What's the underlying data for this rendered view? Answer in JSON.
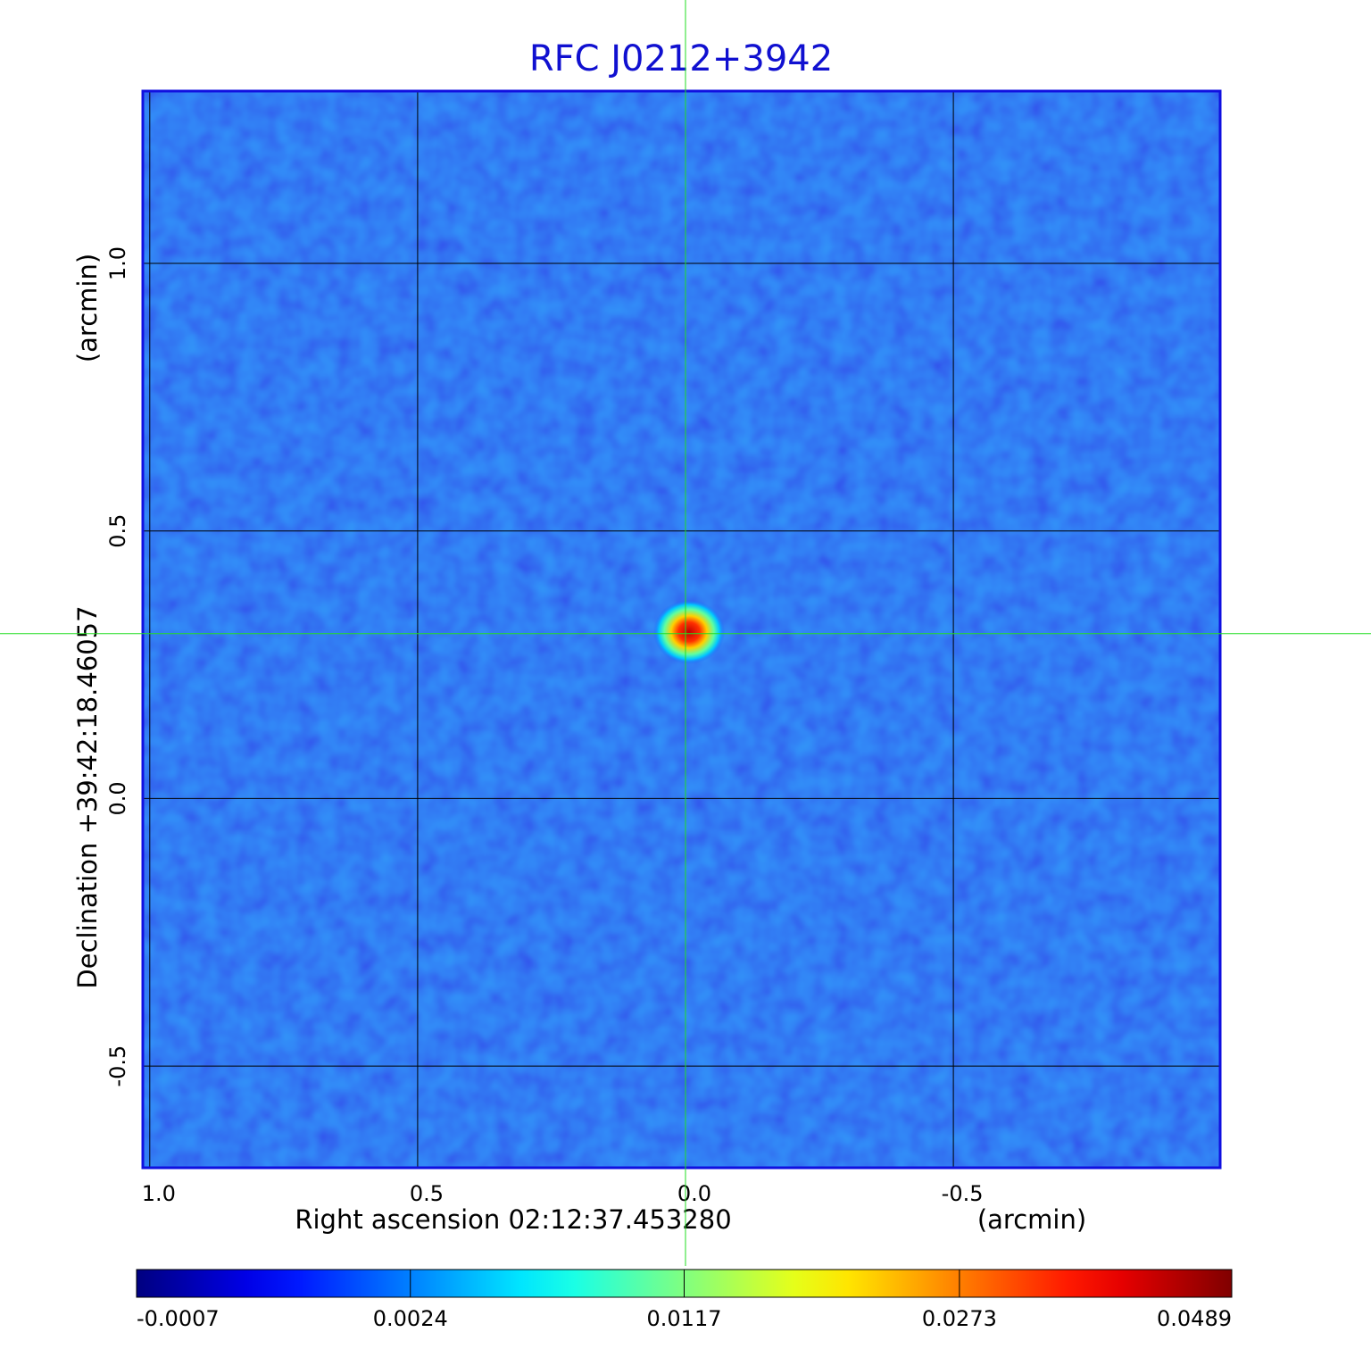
{
  "chart_data": {
    "type": "image",
    "title": "RFC J0212+3942",
    "x_label": "Right ascension  02:12:37.453280",
    "x_unit": "(arcmin)",
    "y_label": "Declination  +39:42:18.46057",
    "y_unit": "(arcmin)",
    "xlim": [
      1.013,
      -0.998
    ],
    "ylim": [
      -0.69,
      1.322
    ],
    "xticks": [
      {
        "value": 1,
        "label": "1.0"
      },
      0.5,
      {
        "value": 0,
        "label": "0.0"
      },
      -0.5
    ],
    "yticks": [
      {
        "value": 1,
        "label": "1.0"
      },
      0.5,
      {
        "value": 0,
        "label": "0.0"
      },
      -0.5
    ],
    "grid": true,
    "crosshair": [
      0,
      0.308
    ],
    "colormap": "jet",
    "clim": [
      -0.0007,
      0.0489
    ],
    "cscale": "sqrt",
    "cticks": [
      -0.0007,
      0.0024,
      0.0117,
      0.0273,
      0.0489
    ]
  }
}
